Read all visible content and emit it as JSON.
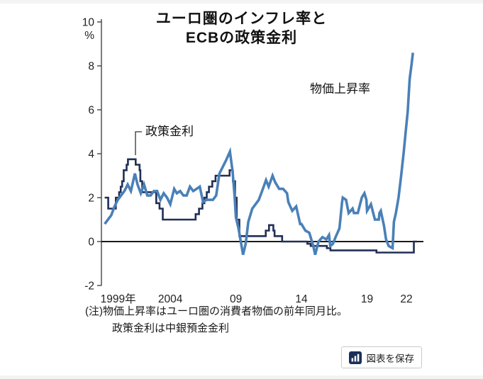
{
  "header": {
    "title_line1": "ユーロ圏のインフレ率と",
    "title_line2": "ECBの政策金利"
  },
  "chart_data": {
    "type": "line",
    "title": "ユーロ圏のインフレ率とECBの政策金利",
    "y_unit_label": "%",
    "ylim": [
      -2,
      10
    ],
    "y_ticks": [
      -2,
      0,
      2,
      4,
      6,
      8,
      10
    ],
    "xlim": [
      1998.75,
      2023.3
    ],
    "grid": false,
    "x_ticks": [
      {
        "x": 1999,
        "label": "1999年"
      },
      {
        "x": 2004,
        "label": "2004"
      },
      {
        "x": 2009,
        "label": "09"
      },
      {
        "x": 2014,
        "label": "14"
      },
      {
        "x": 2019,
        "label": "19"
      },
      {
        "x": 2022,
        "label": "22"
      }
    ],
    "series": [
      {
        "name": "政策金利",
        "data_name": "policy-rate-line",
        "type": "step",
        "color": "#202f55",
        "width": 2.6,
        "points": [
          [
            1999.0,
            2.0
          ],
          [
            1999.27,
            1.5
          ],
          [
            1999.85,
            2.0
          ],
          [
            2000.1,
            2.25
          ],
          [
            2000.22,
            2.5
          ],
          [
            2000.33,
            2.75
          ],
          [
            2000.45,
            3.25
          ],
          [
            2000.67,
            3.5
          ],
          [
            2000.77,
            3.75
          ],
          [
            2001.36,
            3.5
          ],
          [
            2001.66,
            3.25
          ],
          [
            2001.72,
            2.75
          ],
          [
            2001.86,
            2.25
          ],
          [
            2002.93,
            1.75
          ],
          [
            2003.18,
            1.5
          ],
          [
            2003.43,
            1.0
          ],
          [
            2005.93,
            1.25
          ],
          [
            2006.19,
            1.5
          ],
          [
            2006.45,
            1.75
          ],
          [
            2006.6,
            2.0
          ],
          [
            2006.78,
            2.25
          ],
          [
            2006.95,
            2.5
          ],
          [
            2007.2,
            2.75
          ],
          [
            2007.45,
            3.0
          ],
          [
            2008.52,
            3.25
          ],
          [
            2008.77,
            2.75
          ],
          [
            2008.94,
            2.0
          ],
          [
            2009.06,
            1.0
          ],
          [
            2009.27,
            0.25
          ],
          [
            2011.28,
            0.5
          ],
          [
            2011.53,
            0.75
          ],
          [
            2011.86,
            0.5
          ],
          [
            2011.95,
            0.25
          ],
          [
            2012.53,
            0.0
          ],
          [
            2014.45,
            -0.1
          ],
          [
            2014.7,
            -0.2
          ],
          [
            2015.94,
            -0.3
          ],
          [
            2016.21,
            -0.4
          ],
          [
            2019.72,
            -0.5
          ],
          [
            2022.57,
            0.0
          ],
          [
            2022.8,
            0.0
          ]
        ]
      },
      {
        "name": "物価上昇率",
        "data_name": "inflation-line",
        "type": "line",
        "color": "#4a80b8",
        "width": 3.6,
        "points": [
          [
            1999.0,
            0.8
          ],
          [
            1999.25,
            1.0
          ],
          [
            1999.5,
            1.2
          ],
          [
            1999.75,
            1.6
          ],
          [
            2000.0,
            1.9
          ],
          [
            2000.25,
            2.1
          ],
          [
            2000.5,
            2.3
          ],
          [
            2000.75,
            2.6
          ],
          [
            2001.0,
            2.3
          ],
          [
            2001.3,
            3.1
          ],
          [
            2001.5,
            2.6
          ],
          [
            2001.75,
            2.2
          ],
          [
            2002.0,
            2.6
          ],
          [
            2002.25,
            2.1
          ],
          [
            2002.5,
            2.1
          ],
          [
            2002.75,
            2.3
          ],
          [
            2003.0,
            2.3
          ],
          [
            2003.25,
            1.9
          ],
          [
            2003.5,
            2.2
          ],
          [
            2003.75,
            2.0
          ],
          [
            2004.0,
            1.7
          ],
          [
            2004.3,
            2.4
          ],
          [
            2004.5,
            2.2
          ],
          [
            2004.75,
            2.3
          ],
          [
            2005.0,
            2.1
          ],
          [
            2005.25,
            2.1
          ],
          [
            2005.5,
            2.5
          ],
          [
            2005.75,
            2.3
          ],
          [
            2006.0,
            2.4
          ],
          [
            2006.25,
            2.5
          ],
          [
            2006.5,
            1.8
          ],
          [
            2006.75,
            1.9
          ],
          [
            2007.0,
            1.9
          ],
          [
            2007.25,
            1.9
          ],
          [
            2007.5,
            2.1
          ],
          [
            2007.75,
            3.1
          ],
          [
            2008.0,
            3.4
          ],
          [
            2008.25,
            3.7
          ],
          [
            2008.55,
            4.1
          ],
          [
            2008.75,
            3.2
          ],
          [
            2008.9,
            2.1
          ],
          [
            2009.0,
            1.1
          ],
          [
            2009.2,
            0.6
          ],
          [
            2009.55,
            -0.6
          ],
          [
            2009.75,
            -0.1
          ],
          [
            2009.95,
            0.9
          ],
          [
            2010.25,
            1.5
          ],
          [
            2010.5,
            1.7
          ],
          [
            2010.75,
            1.9
          ],
          [
            2011.0,
            2.3
          ],
          [
            2011.3,
            2.8
          ],
          [
            2011.5,
            2.5
          ],
          [
            2011.8,
            3.0
          ],
          [
            2012.0,
            2.7
          ],
          [
            2012.3,
            2.4
          ],
          [
            2012.6,
            2.4
          ],
          [
            2012.9,
            2.2
          ],
          [
            2013.0,
            1.8
          ],
          [
            2013.3,
            1.4
          ],
          [
            2013.6,
            1.6
          ],
          [
            2013.9,
            0.8
          ],
          [
            2014.0,
            0.8
          ],
          [
            2014.3,
            0.5
          ],
          [
            2014.6,
            0.4
          ],
          [
            2014.9,
            -0.2
          ],
          [
            2015.05,
            -0.6
          ],
          [
            2015.3,
            0.0
          ],
          [
            2015.6,
            0.2
          ],
          [
            2015.9,
            0.1
          ],
          [
            2016.1,
            0.3
          ],
          [
            2016.2,
            -0.2
          ],
          [
            2016.4,
            -0.1
          ],
          [
            2016.6,
            0.2
          ],
          [
            2016.9,
            0.6
          ],
          [
            2017.1,
            1.8
          ],
          [
            2017.15,
            2.0
          ],
          [
            2017.4,
            1.9
          ],
          [
            2017.6,
            1.3
          ],
          [
            2017.9,
            1.5
          ],
          [
            2018.0,
            1.3
          ],
          [
            2018.3,
            1.3
          ],
          [
            2018.6,
            2.0
          ],
          [
            2018.8,
            2.2
          ],
          [
            2018.95,
            1.9
          ],
          [
            2019.0,
            1.4
          ],
          [
            2019.3,
            1.7
          ],
          [
            2019.6,
            1.0
          ],
          [
            2019.9,
            1.0
          ],
          [
            2019.95,
            1.3
          ],
          [
            2020.05,
            1.4
          ],
          [
            2020.3,
            0.7
          ],
          [
            2020.45,
            0.1
          ],
          [
            2020.65,
            -0.2
          ],
          [
            2020.95,
            -0.3
          ],
          [
            2021.05,
            0.9
          ],
          [
            2021.2,
            1.3
          ],
          [
            2021.4,
            2.0
          ],
          [
            2021.6,
            3.0
          ],
          [
            2021.8,
            4.1
          ],
          [
            2021.95,
            5.0
          ],
          [
            2022.1,
            5.9
          ],
          [
            2022.25,
            7.4
          ],
          [
            2022.4,
            8.1
          ],
          [
            2022.5,
            8.6
          ]
        ]
      }
    ]
  },
  "note": {
    "line1": "(注)物価上昇率はユーロ圏の消費者物価の前年同月比。",
    "line2": "政策金利は中銀預金金利"
  },
  "save_button": {
    "label": "図表を保存"
  }
}
